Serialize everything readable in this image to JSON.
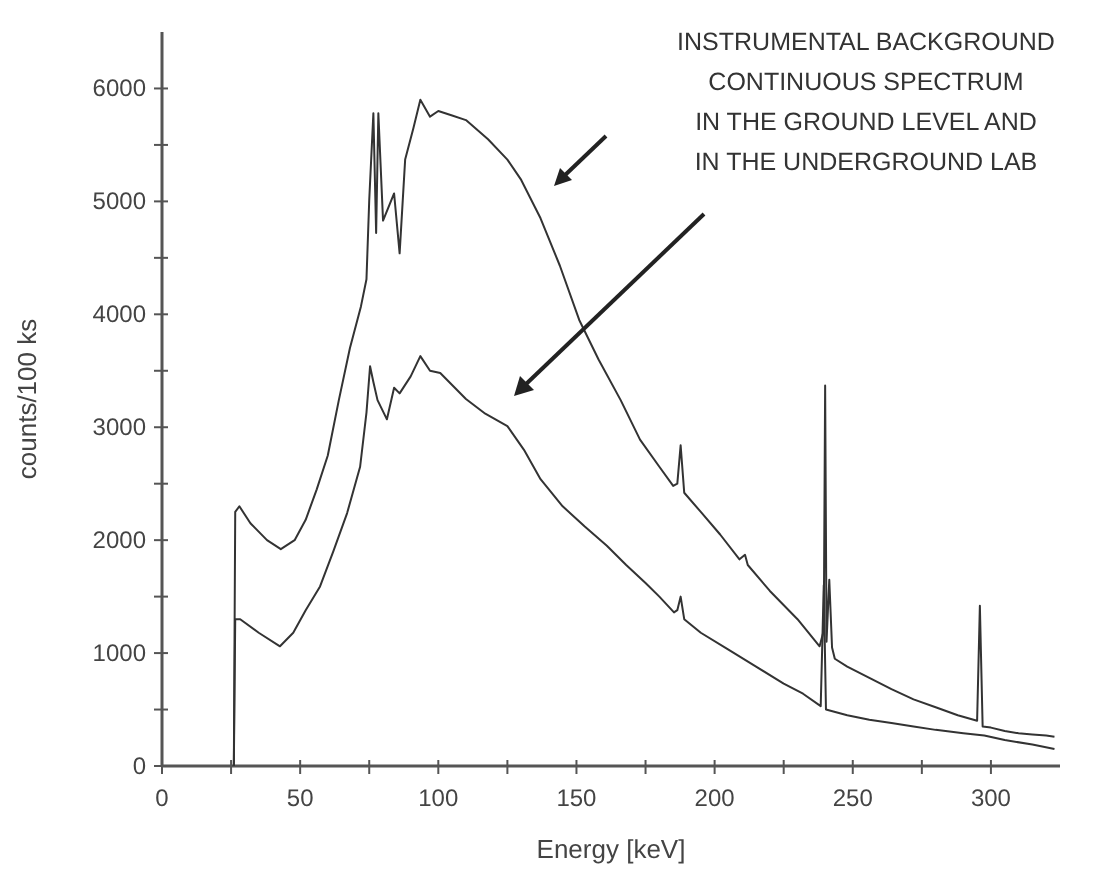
{
  "chart_data": {
    "type": "line",
    "xlabel": "Energy [keV]",
    "ylabel": "counts/100 ks",
    "annotations": [
      "INSTRUMENTAL BACKGROUND\nCONTINUOUS SPECTRUM\nIN THE GROUND LEVEL AND\nIN THE UNDERGROUND LAB"
    ],
    "xlim": [
      0,
      325
    ],
    "xticks": [
      0,
      {
        "value": 25,
        "label": null
      },
      50,
      {
        "value": 75,
        "label": null
      },
      100,
      {
        "value": 125,
        "label": null
      },
      150,
      {
        "value": 175,
        "label": null
      },
      200,
      {
        "value": 225,
        "label": null
      },
      250,
      {
        "value": 275,
        "label": null
      },
      300
    ],
    "ylim": [
      0,
      6500
    ],
    "yticks": [
      0,
      {
        "value": 500,
        "label": null
      },
      1000,
      {
        "value": 1500,
        "label": null
      },
      2000,
      {
        "value": 2500,
        "label": null
      },
      3000,
      {
        "value": 3500,
        "label": null
      },
      4000,
      {
        "value": 4500,
        "label": null
      },
      5000,
      {
        "value": 5500,
        "label": null
      },
      6000
    ],
    "grid": false,
    "marker": "none",
    "line_style": "solid",
    "series": [
      {
        "color": "#333333",
        "x": [
          26,
          26.5,
          28,
          32,
          38,
          43,
          48,
          52,
          56,
          60,
          64,
          68,
          72,
          74,
          75,
          76.5,
          77.5,
          78.3,
          80,
          84,
          86,
          88,
          91,
          93.5,
          97,
          100,
          105,
          110,
          118,
          125,
          130,
          137,
          144,
          151,
          158,
          166,
          173,
          180,
          185,
          186.5,
          187.7,
          189,
          195,
          202,
          209,
          211,
          212,
          220,
          230,
          238,
          239.5,
          240,
          240.5,
          241.5,
          242.5,
          243.5,
          248,
          256,
          264,
          272,
          280,
          288,
          295,
          296,
          297,
          300,
          305,
          310,
          315,
          320,
          323
        ],
        "values": [
          0,
          2250,
          2300,
          2150,
          2000,
          1920,
          2000,
          2180,
          2450,
          2750,
          3240,
          3700,
          4070,
          4310,
          5010,
          5780,
          4720,
          5780,
          4830,
          5070,
          4540,
          5370,
          5650,
          5900,
          5750,
          5800,
          5760,
          5720,
          5550,
          5370,
          5190,
          4850,
          4430,
          3950,
          3600,
          3240,
          2890,
          2650,
          2480,
          2500,
          2840,
          2420,
          2250,
          2050,
          1830,
          1870,
          1780,
          1550,
          1300,
          1060,
          1200,
          3370,
          1100,
          1650,
          1050,
          950,
          880,
          780,
          680,
          590,
          520,
          450,
          400,
          1420,
          350,
          340,
          310,
          290,
          280,
          270,
          260
        ]
      },
      {
        "color": "#333333",
        "x": [
          26,
          26.5,
          28.3,
          35,
          42.7,
          47.5,
          52,
          57.2,
          62,
          67,
          71.7,
          74,
          75.3,
          76.5,
          78,
          81.4,
          84,
          86,
          90,
          93.5,
          97,
          100.7,
          110,
          117,
          125,
          131,
          137,
          145,
          153,
          161,
          168,
          175,
          180,
          185.3,
          186.5,
          187.7,
          189,
          195,
          205,
          215,
          225,
          232,
          238.4,
          239.5,
          240.3,
          248,
          256,
          264,
          272,
          280,
          290,
          297.6,
          305,
          315,
          323
        ],
        "values": [
          0,
          1300,
          1300,
          1180,
          1060,
          1180,
          1380,
          1590,
          1900,
          2240,
          2650,
          3130,
          3540,
          3400,
          3240,
          3070,
          3350,
          3300,
          3450,
          3630,
          3500,
          3480,
          3250,
          3120,
          3010,
          2800,
          2540,
          2300,
          2120,
          1950,
          1780,
          1620,
          1500,
          1360,
          1380,
          1500,
          1300,
          1180,
          1030,
          880,
          730,
          640,
          530,
          1600,
          500,
          450,
          410,
          380,
          350,
          320,
          290,
          270,
          230,
          190,
          150
        ]
      }
    ]
  }
}
